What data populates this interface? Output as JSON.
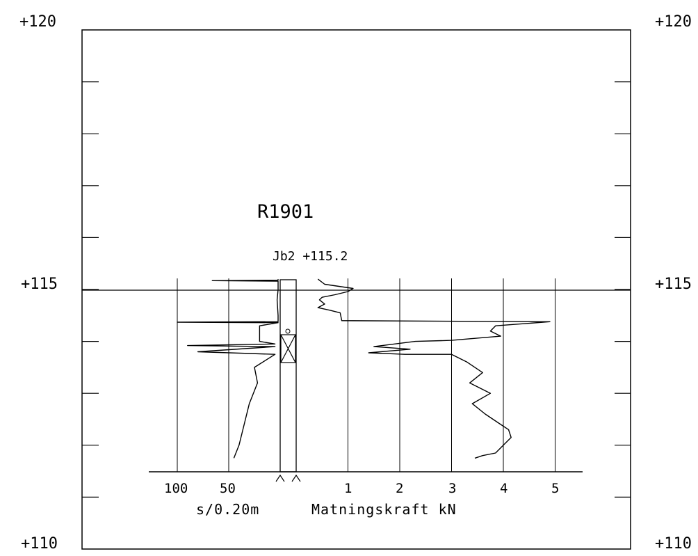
{
  "colors": {
    "line": "#000000",
    "background": "#ffffff"
  },
  "probe": {
    "title": "R1901",
    "label": "Jb2 +115.2"
  },
  "levels": {
    "top": "+120",
    "mid": "+115",
    "bottom": "+110"
  },
  "axes": {
    "force_label": "Matningskraft kN",
    "blow_label": "s/0.20m",
    "force_ticks": [
      "1",
      "2",
      "3",
      "4",
      "5"
    ],
    "blow_ticks": [
      "100",
      "50"
    ]
  },
  "chart_data": {
    "type": "line",
    "title": "R1901",
    "xlabel": "Matningskraft kN",
    "ylabel": "",
    "ylim": [
      110,
      120
    ],
    "grid": true,
    "ground_level": 115.2,
    "series": [
      {
        "name": "",
        "unit": "kN",
        "points": [
          [
            0.42,
            115.2
          ],
          [
            0.55,
            115.1
          ],
          [
            1.1,
            115.02
          ],
          [
            1.0,
            114.96
          ],
          [
            0.75,
            114.9
          ],
          [
            0.5,
            114.85
          ],
          [
            0.45,
            114.8
          ],
          [
            0.55,
            114.72
          ],
          [
            0.42,
            114.65
          ],
          [
            0.65,
            114.6
          ],
          [
            0.85,
            114.55
          ],
          [
            0.88,
            114.4
          ],
          [
            4.9,
            114.38
          ],
          [
            3.85,
            114.3
          ],
          [
            3.75,
            114.2
          ],
          [
            3.95,
            114.1
          ],
          [
            3.0,
            114.02
          ],
          [
            2.3,
            114.0
          ],
          [
            1.5,
            113.9
          ],
          [
            2.2,
            113.85
          ],
          [
            1.4,
            113.78
          ],
          [
            2.1,
            113.75
          ],
          [
            3.0,
            113.75
          ],
          [
            3.3,
            113.6
          ],
          [
            3.6,
            113.4
          ],
          [
            3.35,
            113.2
          ],
          [
            3.75,
            113.0
          ],
          [
            3.4,
            112.8
          ],
          [
            3.65,
            112.6
          ],
          [
            3.95,
            112.4
          ],
          [
            4.1,
            112.3
          ],
          [
            4.15,
            112.15
          ],
          [
            4.0,
            112.0
          ],
          [
            3.85,
            111.85
          ],
          [
            3.6,
            111.8
          ],
          [
            3.45,
            111.75
          ]
        ]
      },
      {
        "name": "",
        "unit": "s/0.20m",
        "points": [
          [
            2,
            115.2
          ],
          [
            2,
            115.18
          ],
          [
            66,
            115.17
          ],
          [
            2,
            115.16
          ],
          [
            2,
            115.0
          ],
          [
            3,
            114.8
          ],
          [
            2,
            114.5
          ],
          [
            2,
            114.38
          ],
          [
            100,
            114.37
          ],
          [
            2,
            114.36
          ],
          [
            20,
            114.3
          ],
          [
            20,
            114.0
          ],
          [
            5,
            113.95
          ],
          [
            90,
            113.92
          ],
          [
            5,
            113.9
          ],
          [
            80,
            113.8
          ],
          [
            5,
            113.75
          ],
          [
            25,
            113.5
          ],
          [
            22,
            113.2
          ],
          [
            30,
            112.8
          ],
          [
            35,
            112.4
          ],
          [
            40,
            112.0
          ],
          [
            45,
            111.75
          ]
        ]
      }
    ]
  }
}
